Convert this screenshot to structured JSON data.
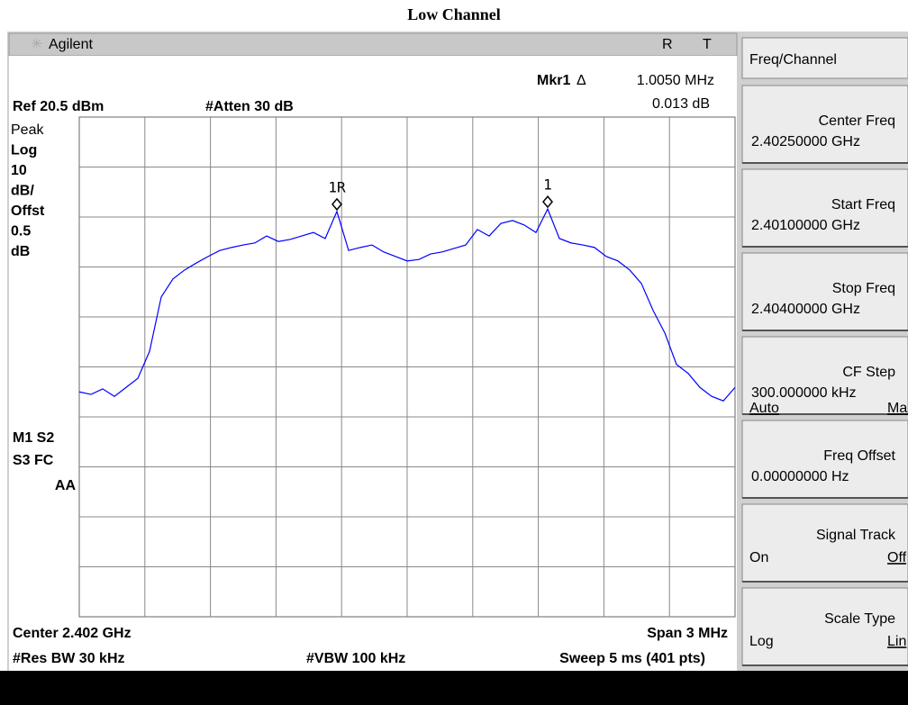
{
  "title": "Low Channel",
  "header": {
    "brand": "Agilent",
    "status": [
      "R",
      "T"
    ]
  },
  "readout": {
    "marker": "Mkr1",
    "delta": "Δ",
    "frequency": "1.0050 MHz",
    "amplitude": "0.013 dB"
  },
  "settings": {
    "ref": "Ref 20.5 dBm",
    "atten": "#Atten 30 dB"
  },
  "left_labels": [
    "Peak",
    "Log",
    "10",
    "dB/",
    "Offst",
    "0.5",
    "dB"
  ],
  "status_labels": [
    "M1  S2",
    "S3  FC",
    "AA"
  ],
  "footer": {
    "center": "Center 2.402 GHz",
    "span": "Span 3 MHz",
    "rbw": "#Res BW 30 kHz",
    "vbw": "#VBW 100 kHz",
    "sweep": "Sweep 5 ms (401 pts)"
  },
  "trace": {
    "values": [
      -34.5,
      -35.0,
      -33.9,
      -35.4,
      -33.6,
      -31.8,
      -26.4,
      -15.5,
      -11.9,
      -10.1,
      -8.7,
      -7.4,
      -6.2,
      -5.6,
      -5.1,
      -4.7,
      -3.3,
      -4.4,
      -4.0,
      -3.3,
      -2.6,
      -3.8,
      1.6,
      -6.2,
      -5.6,
      -5.1,
      -6.5,
      -7.4,
      -8.3,
      -8.0,
      -6.9,
      -6.5,
      -5.8,
      -5.1,
      -2.0,
      -3.3,
      -0.8,
      -0.2,
      -1.1,
      -2.6,
      2.1,
      -3.8,
      -4.7,
      -5.1,
      -5.6,
      -7.4,
      -8.3,
      -10.1,
      -12.8,
      -18.2,
      -22.7,
      -29.0,
      -30.8,
      -33.6,
      -35.4,
      -36.3,
      -33.6
    ],
    "ylim": [
      -79.5,
      20.5
    ],
    "color": "#0000ff"
  },
  "markers": [
    {
      "label": "1R"
    },
    {
      "label": "1"
    }
  ],
  "menu": {
    "title": "Freq/Channel",
    "keys": [
      {
        "label": "Center Freq",
        "value": "2.40250000 GHz"
      },
      {
        "label": "Start Freq",
        "value": "2.40100000 GHz"
      },
      {
        "label": "Stop Freq",
        "value": "2.40400000 GHz"
      },
      {
        "label": "CF Step",
        "value": "300.000000 kHz",
        "left": "Auto",
        "right": "Man"
      },
      {
        "label": "Freq Offset",
        "value": "0.00000000  Hz"
      },
      {
        "label": "Signal Track",
        "left": "On",
        "right": "Off"
      },
      {
        "label": "Scale Type",
        "left": "Log",
        "right": "Lin"
      }
    ]
  }
}
